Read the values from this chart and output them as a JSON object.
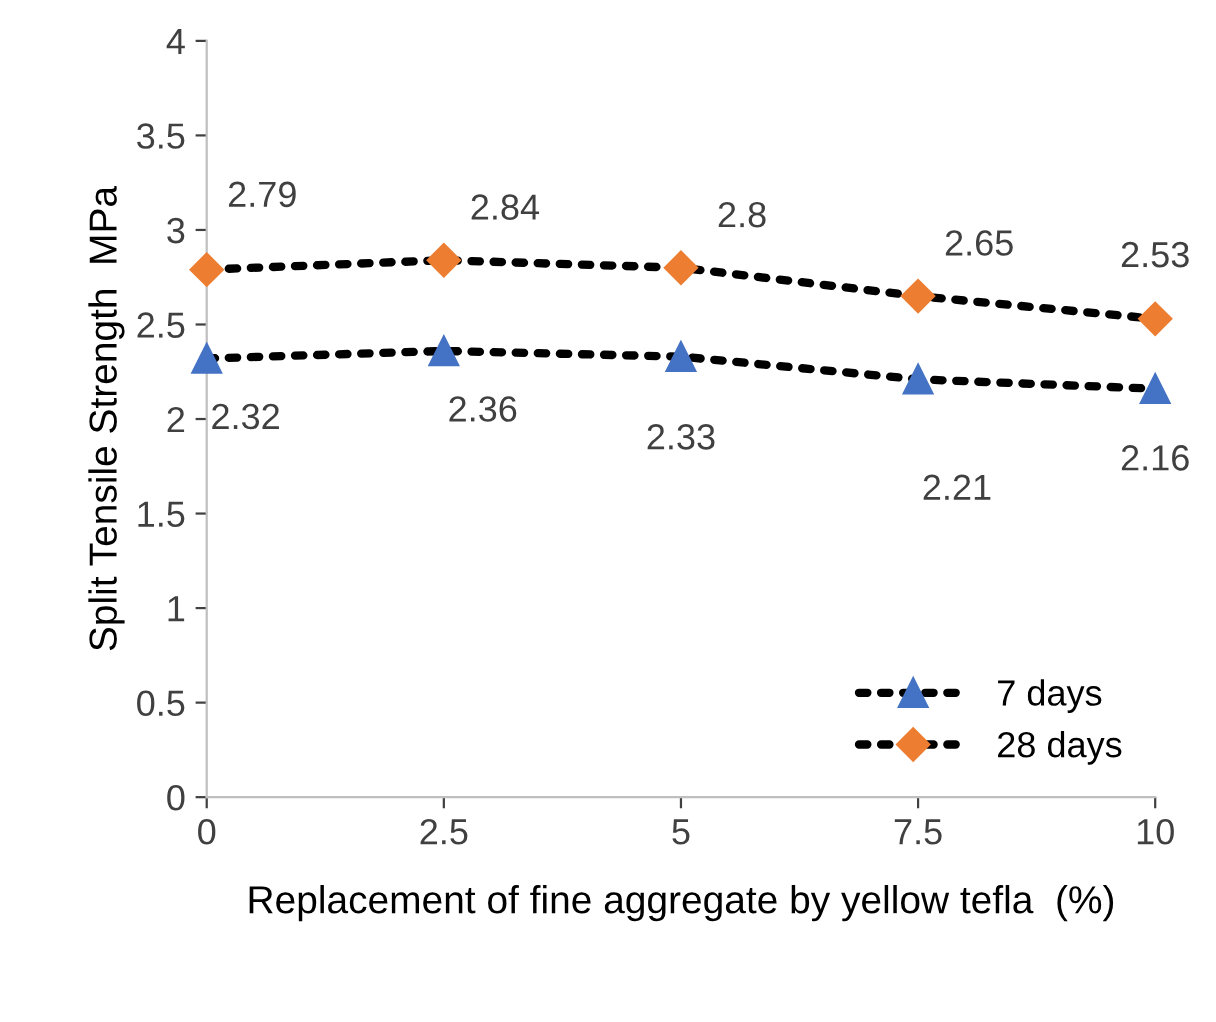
{
  "chart_data": {
    "type": "line",
    "xlabel": "Replacement of fine aggregate by yellow tefla  (%)",
    "ylabel": "Split Tensile Strength  MPa",
    "x": [
      0,
      2.5,
      5,
      7.5,
      10
    ],
    "series": [
      {
        "name": "7 days",
        "color": "#4472c4",
        "marker": "triangle",
        "values": [
          2.32,
          2.36,
          2.33,
          2.21,
          2.16
        ]
      },
      {
        "name": "28 days",
        "color": "#ed7d31",
        "marker": "diamond",
        "values": [
          2.79,
          2.84,
          2.8,
          2.65,
          2.53
        ]
      }
    ],
    "xlim": [
      0,
      10
    ],
    "xticks": [
      0,
      2.5,
      5,
      7.5,
      10
    ],
    "ylim": [
      0,
      4
    ],
    "yticks": [
      0,
      0.5,
      1,
      1.5,
      2,
      2.5,
      3,
      3.5,
      4
    ],
    "line_style": "dotted",
    "data_labels": true,
    "grid": false,
    "legend": "bottom right"
  }
}
